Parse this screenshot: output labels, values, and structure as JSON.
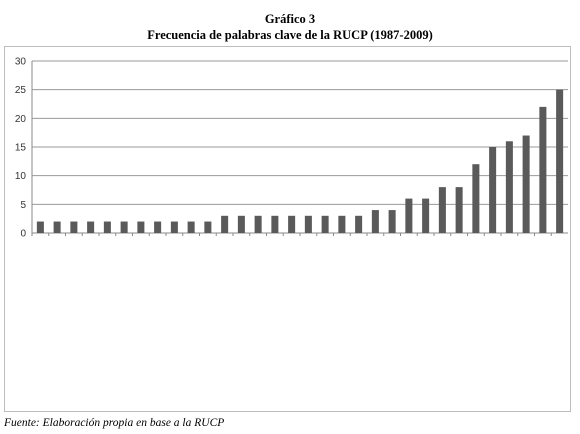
{
  "header": {
    "title": "Gráfico 3",
    "subtitle": "Frecuencia de palabras clave de la RUCP (1987-2009)"
  },
  "source_note": "Fuente: Elaboración propia en base a la RUCP",
  "colors": {
    "bar": "#5a5a5a",
    "grid": "#9a9a9a",
    "axis": "#8a8a8a"
  },
  "chart_data": {
    "type": "bar",
    "title": "Frecuencia de palabras clave de la RUCP (1987-2009)",
    "xlabel": "",
    "ylabel": "",
    "ylim": [
      0,
      30
    ],
    "yticks": [
      0,
      5,
      10,
      15,
      20,
      25,
      30
    ],
    "grid": true,
    "values": [
      2,
      2,
      2,
      2,
      2,
      2,
      2,
      2,
      2,
      2,
      2,
      3,
      3,
      3,
      3,
      3,
      3,
      3,
      3,
      3,
      4,
      4,
      6,
      6,
      8,
      8,
      12,
      15,
      16,
      17,
      22,
      25
    ]
  }
}
